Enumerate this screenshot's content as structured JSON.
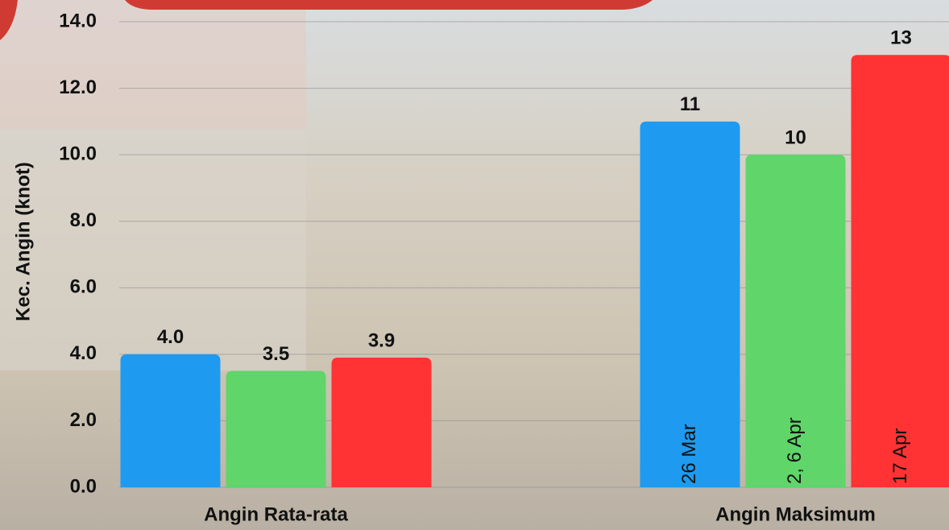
{
  "chart_data": {
    "type": "bar",
    "y_label": "Kec. Angin (knot)",
    "categories": [
      "Angin Rata-rata",
      "Angin Maksimum"
    ],
    "series": [
      {
        "color": "#1e9bf0",
        "values": [
          4.0,
          11
        ],
        "value_labels": [
          "4.0",
          "11"
        ],
        "date_labels": [
          null,
          "26 Mar"
        ]
      },
      {
        "color": "#5fd56a",
        "values": [
          3.5,
          10
        ],
        "value_labels": [
          "3.5",
          "10"
        ],
        "date_labels": [
          null,
          "2, 6 Apr"
        ]
      },
      {
        "color": "#ff3333",
        "values": [
          3.9,
          13
        ],
        "value_labels": [
          "3.9",
          "13"
        ],
        "date_labels": [
          null,
          "17 Apr"
        ]
      }
    ],
    "ylim": [
      0,
      14
    ],
    "yticks": [
      {
        "value": 0,
        "label": "0.0"
      },
      {
        "value": 2,
        "label": "2.0"
      },
      {
        "value": 4,
        "label": "4.0"
      },
      {
        "value": 6,
        "label": "6.0"
      },
      {
        "value": 8,
        "label": "8.0"
      },
      {
        "value": 10,
        "label": "10.0"
      },
      {
        "value": 12,
        "label": "12.0"
      },
      {
        "value": 14,
        "label": "14.0"
      }
    ],
    "grid": true
  }
}
